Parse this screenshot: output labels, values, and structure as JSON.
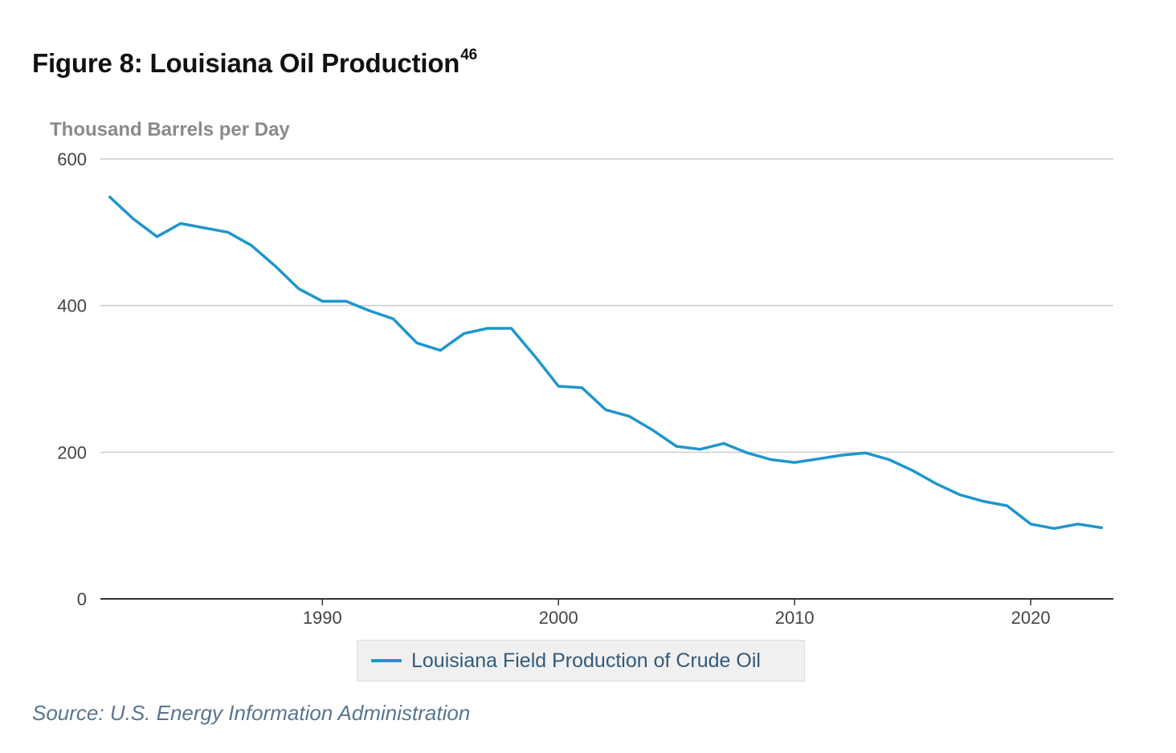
{
  "figure": {
    "title": "Figure 8: Louisiana Oil Production",
    "footnote": "46"
  },
  "source": "Source: U.S. Energy Information Administration",
  "colors": {
    "series_line": "#1f96cc",
    "gridline": "#cccccc",
    "axis": "#333333"
  },
  "chart_data": {
    "type": "line",
    "title": "Figure 8: Louisiana Oil Production",
    "xlabel": "",
    "ylabel": "Thousand Barrels per Day",
    "xlim": [
      1980.6,
      2023.5
    ],
    "ylim": [
      0,
      600
    ],
    "yticks": [
      0,
      200,
      400,
      600
    ],
    "xticks": [
      1990,
      2000,
      2010,
      2020
    ],
    "grid": true,
    "legend_position": "bottom-center",
    "series": [
      {
        "name": "Louisiana Field Production of Crude Oil",
        "x": [
          1981,
          1982,
          1983,
          1984,
          1985,
          1986,
          1987,
          1988,
          1989,
          1990,
          1991,
          1992,
          1993,
          1994,
          1995,
          1996,
          1997,
          1998,
          1999,
          2000,
          2001,
          2002,
          2003,
          2004,
          2005,
          2006,
          2007,
          2008,
          2009,
          2010,
          2011,
          2012,
          2013,
          2014,
          2015,
          2016,
          2017,
          2018,
          2019,
          2020,
          2021,
          2022,
          2023
        ],
        "values": [
          548,
          518,
          494,
          512,
          506,
          500,
          482,
          454,
          423,
          406,
          406,
          393,
          382,
          349,
          339,
          362,
          369,
          369,
          331,
          290,
          288,
          258,
          249,
          230,
          208,
          204,
          212,
          199,
          190,
          186,
          191,
          196,
          199,
          190,
          175,
          157,
          142,
          133,
          127,
          102,
          96,
          102,
          97
        ]
      }
    ]
  }
}
